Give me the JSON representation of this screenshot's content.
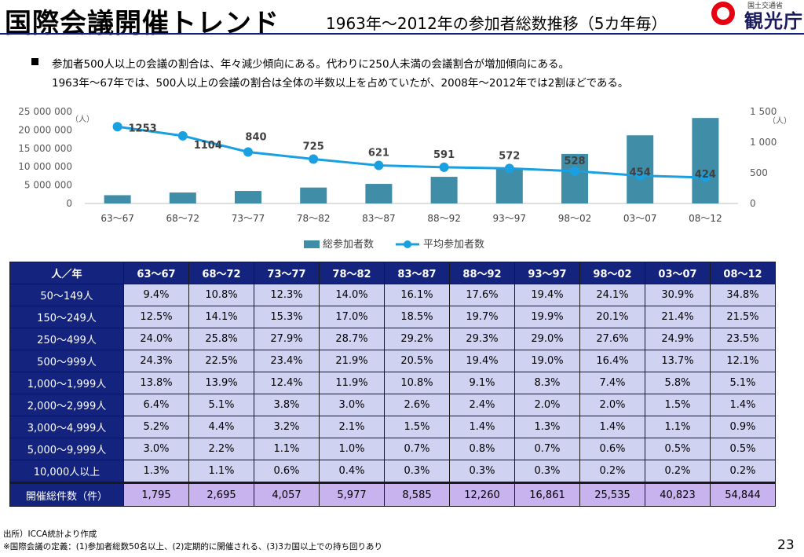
{
  "header": {
    "title": "国際会議開催トレンド",
    "subtitle": "1963年～2012年の参加者総数推移（5カ年毎）",
    "logo_small": "国土交通省",
    "logo_text": "観光庁"
  },
  "description": {
    "line1": "参加者500人以上の会議の割合は、年々減少傾向にある。代わりに250人未満の会議割合が増加傾向にある。",
    "line2": "1963年～67年では、500人以上の会議の割合は全体の半数以上を占めていたが、2008年～2012年では2割ほどである。"
  },
  "chart_data": {
    "type": "bar",
    "categories": [
      "63～67",
      "68～72",
      "73～77",
      "78～82",
      "83～87",
      "88～92",
      "93～97",
      "98～02",
      "03～07",
      "08～12"
    ],
    "series": [
      {
        "name": "総参加者数",
        "type": "bar",
        "axis": "left",
        "color": "#3f8da6",
        "values": [
          2249000,
          2975000,
          3408000,
          4333000,
          5332000,
          7246000,
          9645000,
          13483000,
          18534000,
          23254000
        ]
      },
      {
        "name": "平均参加者数",
        "type": "line",
        "axis": "right",
        "color": "#1aa0e0",
        "values": [
          1253,
          1104,
          840,
          725,
          621,
          591,
          572,
          528,
          454,
          424
        ]
      }
    ],
    "left_axis": {
      "ticks": [
        "25 000 000",
        "20 000 000",
        "15 000 000",
        "10 000 000",
        "5 000 000",
        "0"
      ],
      "unit": "（人）",
      "ylim": [
        0,
        25000000
      ]
    },
    "right_axis": {
      "ticks": [
        "1 500",
        "1 000",
        "500",
        "0"
      ],
      "unit": "（人）",
      "ylim": [
        0,
        1500
      ]
    },
    "legend_position": "bottom",
    "grid": false
  },
  "table": {
    "corner": "人／年",
    "columns": [
      "63～67",
      "68～72",
      "73～77",
      "78～82",
      "83～87",
      "88～92",
      "93～97",
      "98～02",
      "03～07",
      "08～12"
    ],
    "rows": [
      {
        "label": "50～149人",
        "values": [
          "9.4%",
          "10.8%",
          "12.3%",
          "14.0%",
          "16.1%",
          "17.6%",
          "19.4%",
          "24.1%",
          "30.9%",
          "34.8%"
        ]
      },
      {
        "label": "150～249人",
        "values": [
          "12.5%",
          "14.1%",
          "15.3%",
          "17.0%",
          "18.5%",
          "19.7%",
          "19.9%",
          "20.1%",
          "21.4%",
          "21.5%"
        ]
      },
      {
        "label": "250～499人",
        "values": [
          "24.0%",
          "25.8%",
          "27.9%",
          "28.7%",
          "29.2%",
          "29.3%",
          "29.0%",
          "27.6%",
          "24.9%",
          "23.5%"
        ]
      },
      {
        "label": "500～999人",
        "values": [
          "24.3%",
          "22.5%",
          "23.4%",
          "21.9%",
          "20.5%",
          "19.4%",
          "19.0%",
          "16.4%",
          "13.7%",
          "12.1%"
        ]
      },
      {
        "label": "1,000～1,999人",
        "values": [
          "13.8%",
          "13.9%",
          "12.4%",
          "11.9%",
          "10.8%",
          "9.1%",
          "8.3%",
          "7.4%",
          "5.8%",
          "5.1%"
        ]
      },
      {
        "label": "2,000～2,999人",
        "values": [
          "6.4%",
          "5.1%",
          "3.8%",
          "3.0%",
          "2.6%",
          "2.4%",
          "2.0%",
          "2.0%",
          "1.5%",
          "1.4%"
        ]
      },
      {
        "label": "3,000～4,999人",
        "values": [
          "5.2%",
          "4.4%",
          "3.2%",
          "2.1%",
          "1.5%",
          "1.4%",
          "1.3%",
          "1.4%",
          "1.1%",
          "0.9%"
        ]
      },
      {
        "label": "5,000～9,999人",
        "values": [
          "3.0%",
          "2.2%",
          "1.1%",
          "1.0%",
          "0.7%",
          "0.8%",
          "0.7%",
          "0.6%",
          "0.5%",
          "0.5%"
        ]
      },
      {
        "label": "10,000人以上",
        "values": [
          "1.3%",
          "1.1%",
          "0.6%",
          "0.4%",
          "0.3%",
          "0.3%",
          "0.3%",
          "0.2%",
          "0.2%",
          "0.2%"
        ]
      }
    ],
    "total": {
      "label": "開催総件数（件）",
      "values": [
        "1,795",
        "2,695",
        "4,057",
        "5,977",
        "8,585",
        "12,260",
        "16,861",
        "25,535",
        "40,823",
        "54,844"
      ]
    }
  },
  "footer": {
    "source": "出所）ICCA統計より作成",
    "note": "※国際会議の定義：(1)参加者総数50名以上、(2)定期的に開催される、(3)3カ国以上での持ち回りあり",
    "page": "23"
  }
}
